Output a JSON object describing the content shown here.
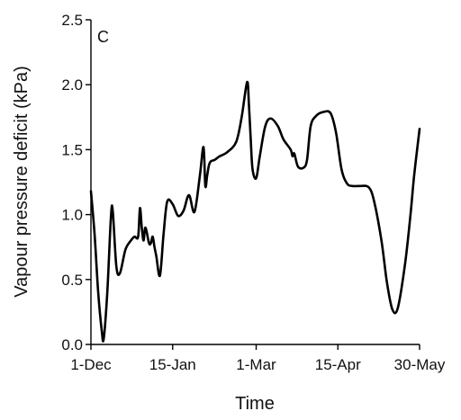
{
  "chart_data": {
    "type": "line",
    "panel_label": "C",
    "title": "",
    "xlabel": "Time",
    "ylabel": "Vapour pressure deficit (kPa)",
    "ylim": [
      0,
      2.5
    ],
    "yticks": [
      0.0,
      0.5,
      1.0,
      1.5,
      2.0,
      2.5
    ],
    "ytick_labels": [
      "0.0",
      "0.5",
      "1.0",
      "1.5",
      "2.0",
      "2.5"
    ],
    "xlim": [
      "2023-12-01",
      "2024-05-30"
    ],
    "xticks": [
      "2023-12-01",
      "2024-01-15",
      "2024-03-01",
      "2024-04-15",
      "2024-05-30"
    ],
    "xtick_labels": [
      "1-Dec",
      "15-Jan",
      "1-Mar",
      "15-Apr",
      "30-May"
    ],
    "grid": false,
    "series": [
      {
        "color": "#000000",
        "x": [
          "2023-12-01",
          "2023-12-03",
          "2023-12-05",
          "2023-12-07",
          "2023-12-08",
          "2023-12-10",
          "2023-12-12",
          "2023-12-13",
          "2023-12-15",
          "2023-12-17",
          "2023-12-20",
          "2023-12-23",
          "2023-12-25",
          "2023-12-27",
          "2023-12-28",
          "2023-12-29",
          "2023-12-30",
          "2023-12-31",
          "2024-01-02",
          "2024-01-03",
          "2024-01-04",
          "2024-01-05",
          "2024-01-06",
          "2024-01-08",
          "2024-01-10",
          "2024-01-12",
          "2024-01-15",
          "2024-01-18",
          "2024-01-21",
          "2024-01-24",
          "2024-01-27",
          "2024-01-30",
          "2024-02-01",
          "2024-02-02",
          "2024-02-03",
          "2024-02-04",
          "2024-02-05",
          "2024-02-07",
          "2024-02-08",
          "2024-02-10",
          "2024-02-14",
          "2024-02-19",
          "2024-02-22",
          "2024-02-25",
          "2024-02-26",
          "2024-02-27",
          "2024-02-28",
          "2024-03-01",
          "2024-03-03",
          "2024-03-06",
          "2024-03-09",
          "2024-03-13",
          "2024-03-16",
          "2024-03-20",
          "2024-03-21",
          "2024-03-22",
          "2024-03-24",
          "2024-03-27",
          "2024-03-29",
          "2024-03-31",
          "2024-04-03",
          "2024-04-07",
          "2024-04-11",
          "2024-04-14",
          "2024-04-17",
          "2024-04-20",
          "2024-04-23",
          "2024-04-27",
          "2024-05-02",
          "2024-05-05",
          "2024-05-09",
          "2024-05-12",
          "2024-05-15",
          "2024-05-18",
          "2024-05-22",
          "2024-05-25",
          "2024-05-27",
          "2024-05-30"
        ],
        "values": [
          1.18,
          0.85,
          0.4,
          0.1,
          0.04,
          0.4,
          0.98,
          1.03,
          0.6,
          0.55,
          0.73,
          0.8,
          0.83,
          0.83,
          1.05,
          0.9,
          0.8,
          0.9,
          0.78,
          0.78,
          0.83,
          0.75,
          0.68,
          0.53,
          0.85,
          1.1,
          1.08,
          0.99,
          1.03,
          1.15,
          1.02,
          1.3,
          1.52,
          1.22,
          1.3,
          1.38,
          1.41,
          1.42,
          1.43,
          1.45,
          1.48,
          1.56,
          1.75,
          2.02,
          1.85,
          1.58,
          1.35,
          1.28,
          1.45,
          1.68,
          1.74,
          1.68,
          1.58,
          1.5,
          1.45,
          1.47,
          1.37,
          1.36,
          1.42,
          1.68,
          1.76,
          1.79,
          1.78,
          1.63,
          1.35,
          1.24,
          1.22,
          1.22,
          1.21,
          1.1,
          0.8,
          0.48,
          0.27,
          0.28,
          0.62,
          1.0,
          1.3,
          1.66
        ]
      }
    ]
  }
}
